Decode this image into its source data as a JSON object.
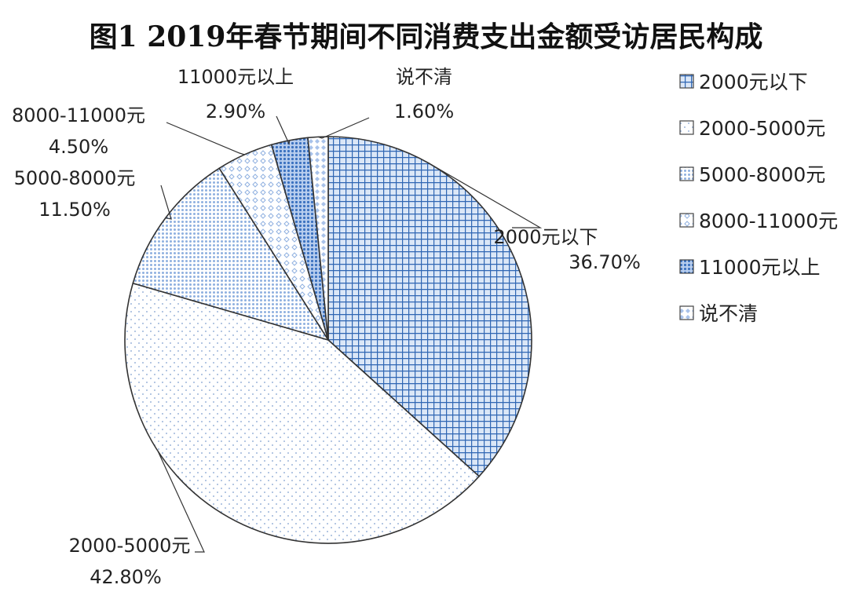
{
  "chart_data": {
    "type": "pie",
    "title": "图1  2019年春节期间不同消费支出金额受访居民构成",
    "slices": [
      {
        "name": "2000元以下",
        "value": 36.7,
        "label": "36.70%",
        "color": "#4a7fc1",
        "fill": "grid"
      },
      {
        "name": "2000-5000元",
        "value": 42.8,
        "label": "42.80%",
        "color": "#8aaad6",
        "fill": "sparse-dots"
      },
      {
        "name": "5000-8000元",
        "value": 11.5,
        "label": "11.50%",
        "color": "#7fa6dc",
        "fill": "dense-dots"
      },
      {
        "name": "8000-11000元",
        "value": 4.5,
        "label": "4.50%",
        "color": "#8aaad6",
        "fill": "sparse-diamonds"
      },
      {
        "name": "11000元以上",
        "value": 2.9,
        "label": "2.90%",
        "color": "#5b8bd0",
        "fill": "solid-dots"
      },
      {
        "name": "说不清",
        "value": 1.6,
        "label": "1.60%",
        "color": "#8aaad6",
        "fill": "diamonds"
      }
    ],
    "start_angle_deg": 0,
    "direction": "clockwise",
    "legend_position": "right"
  }
}
